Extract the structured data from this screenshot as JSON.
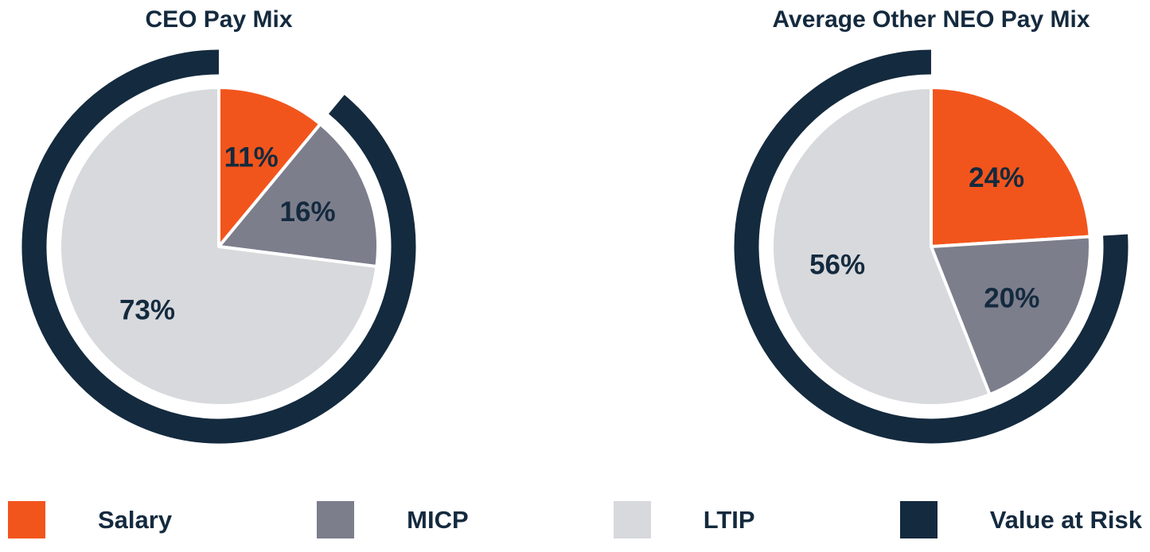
{
  "page": {
    "background": "#ffffff",
    "text_color": "#142A3E"
  },
  "chart_data": [
    {
      "type": "pie",
      "title": "CEO Pay Mix",
      "labels": [
        "Salary",
        "MICP",
        "LTIP"
      ],
      "values": [
        11,
        16,
        73
      ],
      "data_labels": [
        "11%",
        "16%",
        "73%"
      ],
      "colors": [
        "#F2551C",
        "#7C7E8C",
        "#D8D9DD"
      ],
      "start_angle_deg": 0,
      "direction": "clockwise",
      "outer_ring": {
        "label": "Value at Risk",
        "value_percent": 89,
        "covers": [
          "MICP",
          "LTIP"
        ],
        "color": "#142A3E"
      }
    },
    {
      "type": "pie",
      "title": "Average Other NEO Pay Mix",
      "labels": [
        "Salary",
        "MICP",
        "LTIP"
      ],
      "values": [
        24,
        20,
        56
      ],
      "data_labels": [
        "24%",
        "20%",
        "56%"
      ],
      "colors": [
        "#F2551C",
        "#7C7E8C",
        "#D8D9DD"
      ],
      "start_angle_deg": 0,
      "direction": "clockwise",
      "outer_ring": {
        "label": "Value at Risk",
        "value_percent": 76,
        "covers": [
          "MICP",
          "LTIP"
        ],
        "color": "#142A3E"
      }
    }
  ],
  "legend": {
    "items": [
      {
        "label": "Salary",
        "color": "#F2551C"
      },
      {
        "label": "MICP",
        "color": "#7C7E8C"
      },
      {
        "label": "LTIP",
        "color": "#D8D9DD"
      },
      {
        "label": "Value at Risk",
        "color": "#142A3E"
      }
    ]
  }
}
